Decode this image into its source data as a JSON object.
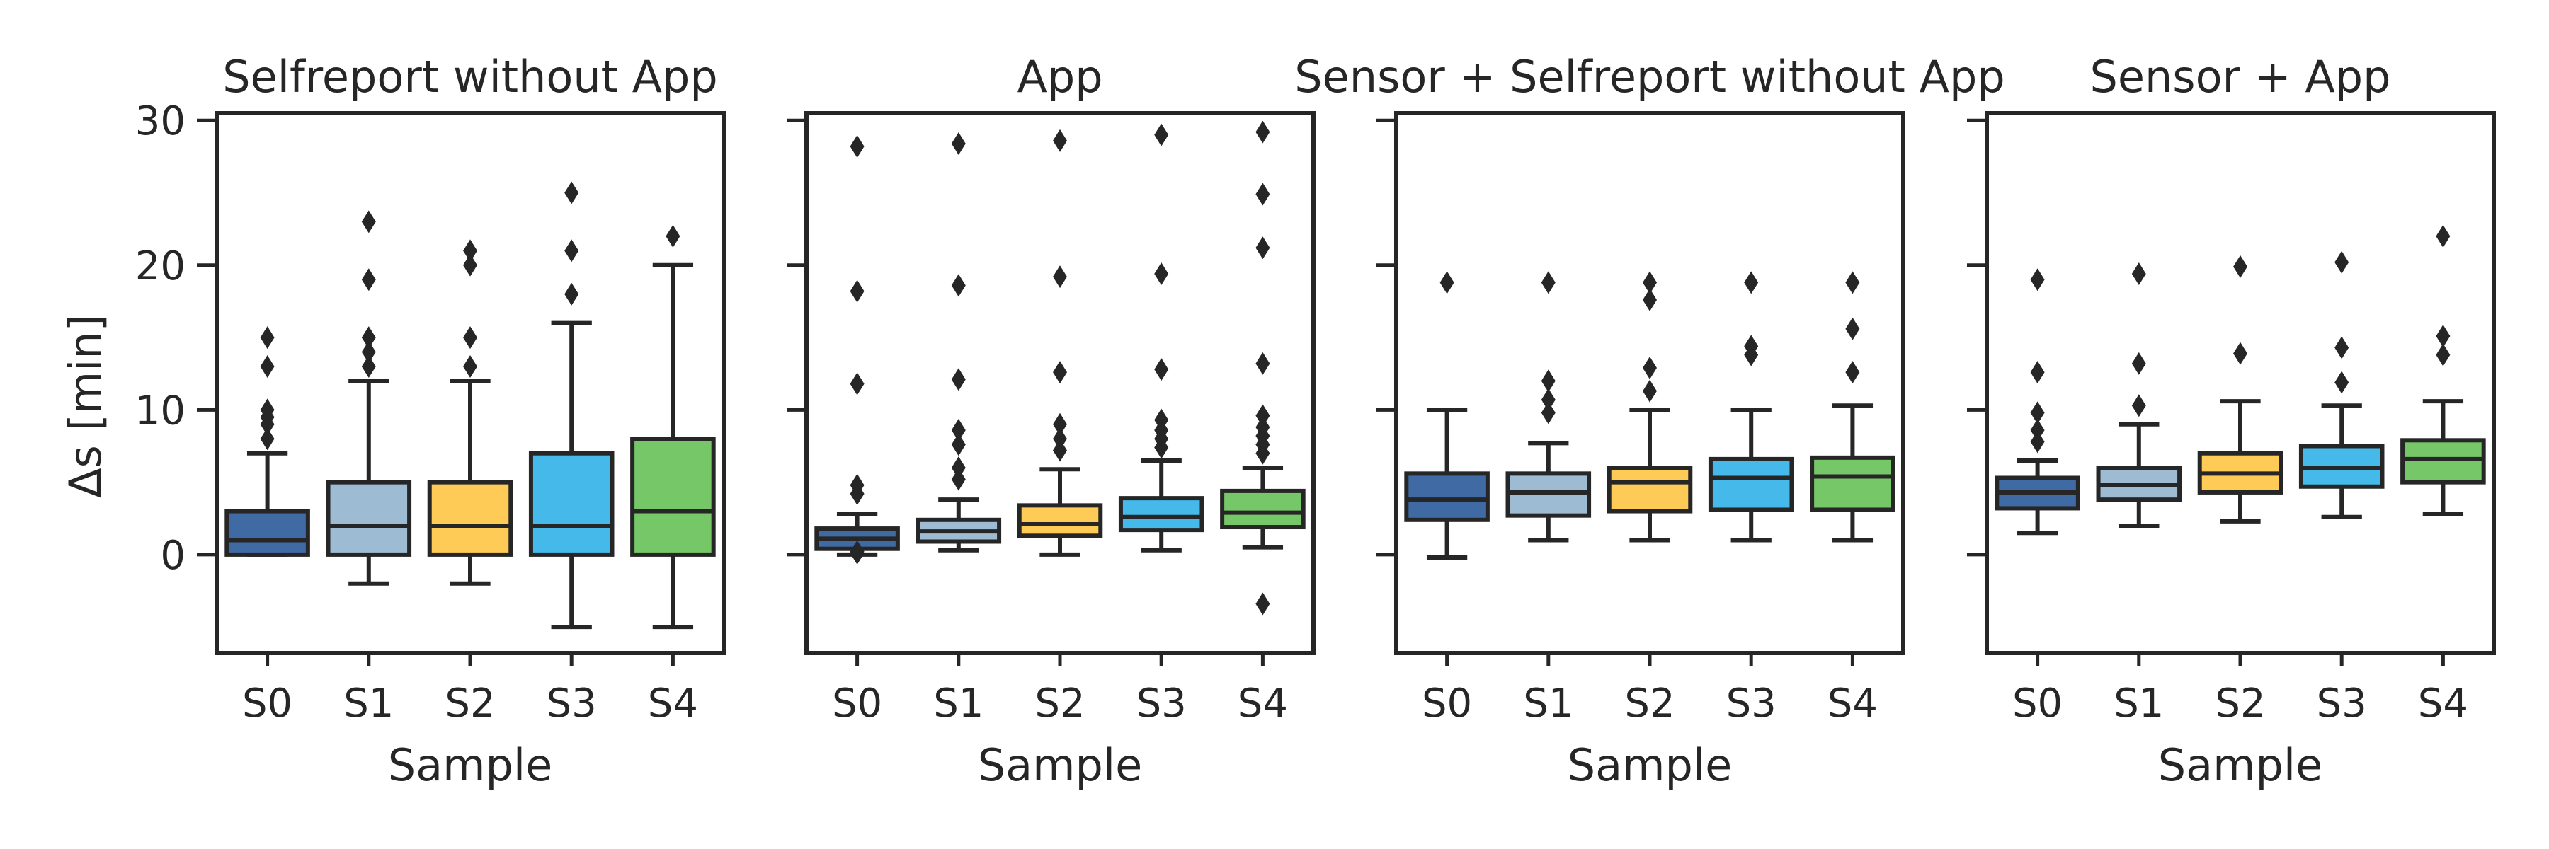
{
  "chart_data": {
    "type": "box",
    "ylabel": "Δs [min]",
    "ylim": [
      -6.8,
      30.5
    ],
    "yticks": [
      0,
      10,
      20,
      30
    ],
    "categories": [
      "S0",
      "S1",
      "S2",
      "S3",
      "S4"
    ],
    "colors": [
      "#3f6aa4",
      "#9dbbd3",
      "#fecb57",
      "#44b9ea",
      "#76c768"
    ],
    "panels": [
      {
        "title": "Selfreport without App",
        "xlabel": "Sample",
        "boxes": [
          {
            "q1": 0,
            "median": 1,
            "q3": 3,
            "whislo": 0,
            "whishi": 7,
            "fliers": [
              8,
              9,
              9.5,
              10,
              13,
              15
            ]
          },
          {
            "q1": 0,
            "median": 2,
            "q3": 5,
            "whislo": -2,
            "whishi": 12,
            "fliers": [
              13,
              14,
              15,
              19,
              23
            ]
          },
          {
            "q1": 0,
            "median": 2,
            "q3": 5,
            "whislo": -2,
            "whishi": 12,
            "fliers": [
              13,
              15,
              20,
              21
            ]
          },
          {
            "q1": 0,
            "median": 2,
            "q3": 7,
            "whislo": -5,
            "whishi": 16,
            "fliers": [
              18,
              21,
              25
            ]
          },
          {
            "q1": 0,
            "median": 3,
            "q3": 8,
            "whislo": -5,
            "whishi": 20,
            "fliers": [
              22
            ]
          }
        ]
      },
      {
        "title": "App",
        "xlabel": "Sample",
        "boxes": [
          {
            "q1": 0.4,
            "median": 1.1,
            "q3": 1.8,
            "whislo": 0,
            "whishi": 2.8,
            "fliers": [
              0.1,
              0.2,
              4.2,
              4.8,
              11.8,
              18.2,
              28.2
            ]
          },
          {
            "q1": 0.9,
            "median": 1.6,
            "q3": 2.4,
            "whislo": 0.3,
            "whishi": 3.8,
            "fliers": [
              5.2,
              6,
              7.6,
              8.6,
              12.1,
              18.6,
              28.4
            ]
          },
          {
            "q1": 1.3,
            "median": 2.1,
            "q3": 3.4,
            "whislo": 0,
            "whishi": 5.9,
            "fliers": [
              7.2,
              8,
              9,
              12.6,
              19.2,
              28.6
            ]
          },
          {
            "q1": 1.7,
            "median": 2.6,
            "q3": 3.9,
            "whislo": 0.3,
            "whishi": 6.5,
            "fliers": [
              7.4,
              8,
              8.6,
              9.3,
              12.8,
              19.4,
              29
            ]
          },
          {
            "q1": 1.9,
            "median": 2.9,
            "q3": 4.4,
            "whislo": 0.5,
            "whishi": 6,
            "fliers": [
              -3.4,
              7,
              7.6,
              8.2,
              8.8,
              9.6,
              13.2,
              21.2,
              24.9,
              29.2
            ]
          }
        ]
      },
      {
        "title": "Sensor + Selfreport without App",
        "xlabel": "Sample",
        "boxes": [
          {
            "q1": 2.4,
            "median": 3.8,
            "q3": 5.6,
            "whislo": -0.2,
            "whishi": 10,
            "fliers": [
              18.8
            ]
          },
          {
            "q1": 2.7,
            "median": 4.3,
            "q3": 5.6,
            "whislo": 1,
            "whishi": 7.7,
            "fliers": [
              9.8,
              10.7,
              12,
              18.8
            ]
          },
          {
            "q1": 3,
            "median": 5,
            "q3": 6,
            "whislo": 1,
            "whishi": 10,
            "fliers": [
              11.3,
              12.9,
              17.6,
              18.8
            ]
          },
          {
            "q1": 3.1,
            "median": 5.3,
            "q3": 6.6,
            "whislo": 1,
            "whishi": 10,
            "fliers": [
              13.8,
              14.4,
              18.8
            ]
          },
          {
            "q1": 3.1,
            "median": 5.4,
            "q3": 6.7,
            "whislo": 1,
            "whishi": 10.3,
            "fliers": [
              12.6,
              15.6,
              18.8
            ]
          }
        ]
      },
      {
        "title": "Sensor + App",
        "xlabel": "Sample",
        "boxes": [
          {
            "q1": 3.2,
            "median": 4.3,
            "q3": 5.3,
            "whislo": 1.5,
            "whishi": 6.5,
            "fliers": [
              7.8,
              8.6,
              9.8,
              12.6,
              19
            ]
          },
          {
            "q1": 3.8,
            "median": 4.8,
            "q3": 6,
            "whislo": 2,
            "whishi": 9,
            "fliers": [
              10.3,
              13.2,
              19.4
            ]
          },
          {
            "q1": 4.3,
            "median": 5.6,
            "q3": 7,
            "whislo": 2.3,
            "whishi": 10.6,
            "fliers": [
              13.9,
              19.9
            ]
          },
          {
            "q1": 4.7,
            "median": 6,
            "q3": 7.5,
            "whislo": 2.6,
            "whishi": 10.3,
            "fliers": [
              11.9,
              14.3,
              20.2
            ]
          },
          {
            "q1": 5,
            "median": 6.6,
            "q3": 7.9,
            "whislo": 2.8,
            "whishi": 10.6,
            "fliers": [
              13.8,
              15.1,
              22
            ]
          }
        ]
      }
    ]
  }
}
